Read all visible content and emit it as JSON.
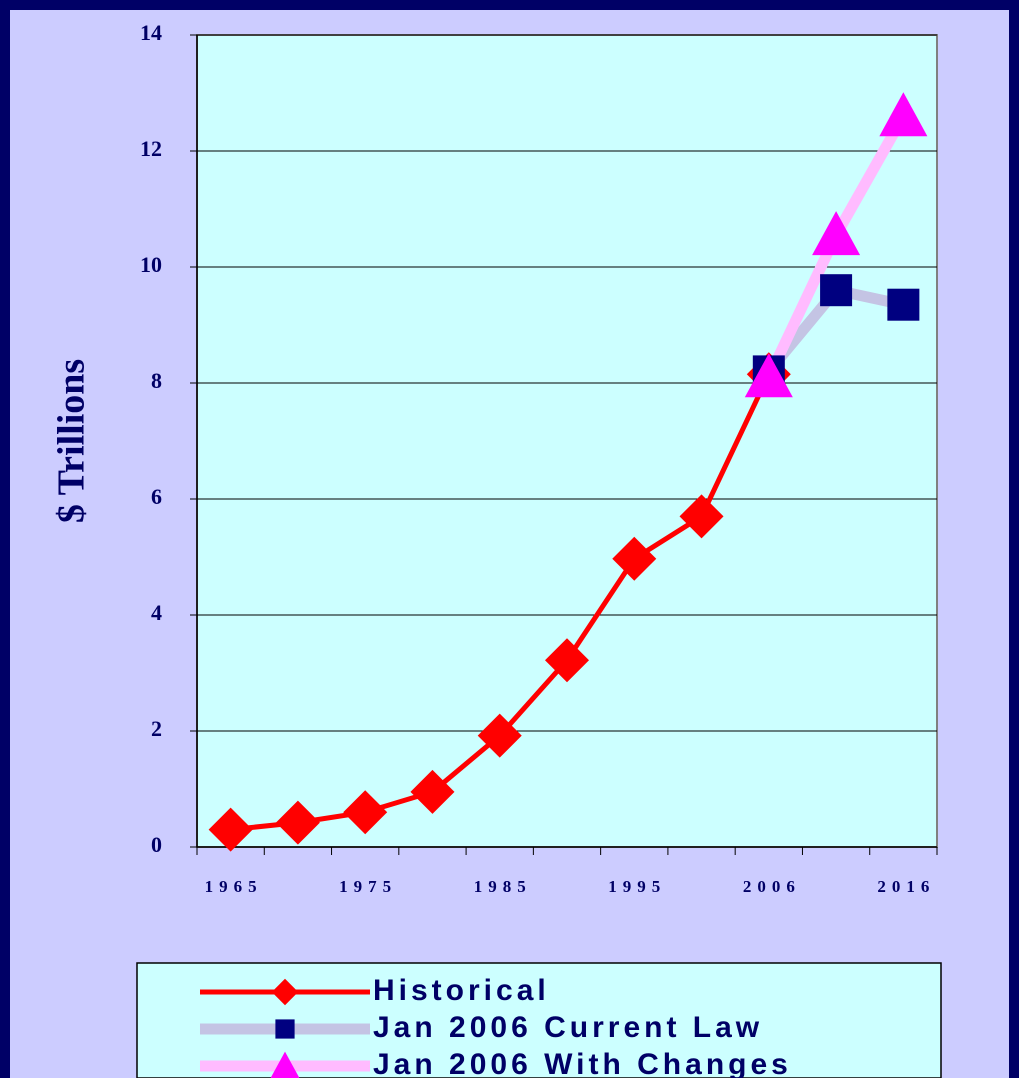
{
  "chart_data": {
    "type": "line",
    "y_label": "$ Trillions",
    "categories": [
      "1965",
      null,
      "1975",
      null,
      "1985",
      null,
      "1995",
      null,
      "2006",
      null,
      "2016"
    ],
    "series": [
      {
        "name": "Historical",
        "color": "#ff0000",
        "marker": "diamond",
        "marker_color": "#ff0000",
        "values": [
          0.3,
          0.42,
          0.6,
          0.95,
          1.92,
          3.22,
          4.97,
          5.7,
          8.15,
          null,
          null
        ]
      },
      {
        "name": "Jan 2006 Current Law",
        "color": "#c4c4e4",
        "marker": "square",
        "marker_color": "#000080",
        "values": [
          null,
          null,
          null,
          null,
          null,
          null,
          null,
          null,
          8.2,
          9.6,
          9.35
        ]
      },
      {
        "name": "Jan 2006 With Changes",
        "color": "#ffbbff",
        "marker": "triangle",
        "marker_color": "#ff00ff",
        "values": [
          null,
          null,
          null,
          null,
          null,
          null,
          null,
          null,
          8.1,
          10.55,
          12.6
        ]
      }
    ],
    "ylim": [
      0,
      14
    ],
    "yticks": [
      0,
      2,
      4,
      6,
      8,
      10,
      12,
      14
    ],
    "grid": true
  }
}
